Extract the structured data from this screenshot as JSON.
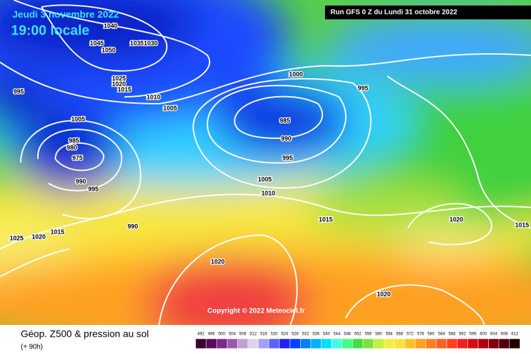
{
  "header": {
    "date": "Jeudi 3 novembre 2022",
    "time": "19:00 locale",
    "run": "Run GFS 0 Z du Lundi 31 octobre 2022"
  },
  "copyright": "Copyright © 2022 Meteociel.fr",
  "isobar_labels": [
    "1040",
    "1045",
    "1050",
    "1035",
    "1030",
    "1025",
    "1020",
    "1015",
    "995",
    "1010",
    "1005",
    "1000",
    "995",
    "985",
    "990",
    "995",
    "1005",
    "985",
    "980",
    "975",
    "990",
    "995",
    "1005",
    "1010",
    "990",
    "1015",
    "1020",
    "1015",
    "1025",
    "1020",
    "1015",
    "1020",
    "1020"
  ],
  "legend": {
    "title": "Géop. Z500 & pression au sol",
    "subtitle": "(+ 90h)",
    "scale": [
      492,
      496,
      500,
      504,
      508,
      512,
      516,
      520,
      524,
      528,
      532,
      536,
      540,
      544,
      548,
      552,
      556,
      560,
      564,
      568,
      572,
      576,
      580,
      584,
      588,
      592,
      596,
      600,
      604,
      608,
      612
    ]
  }
}
